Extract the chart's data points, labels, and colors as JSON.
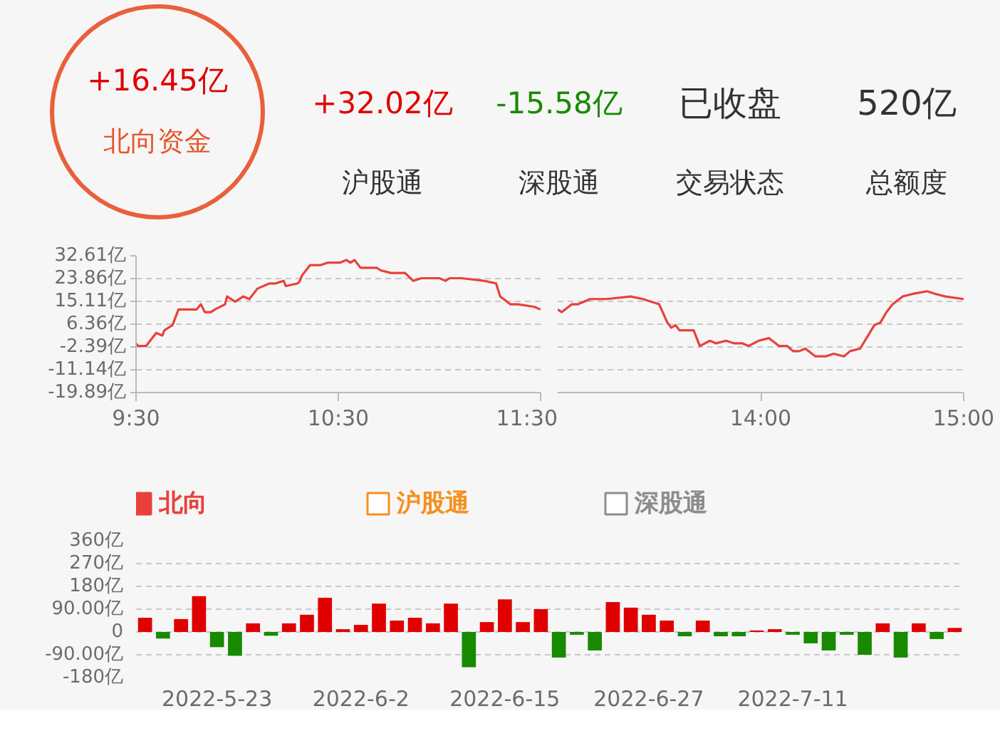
{
  "chart_data": [
    {
      "type": "other",
      "annotations": [
        "+16.45亿",
        "北向资金",
        "+32.02亿",
        "-15.58亿",
        "已收盘",
        "520亿",
        "沪股通",
        "深股通",
        "交易状态",
        "总额度"
      ]
    },
    {
      "type": "line",
      "xlim": [
        9.5,
        11.5
      ],
      "xticks": [
        {
          "value": 9.5,
          "label": "9:30"
        },
        {
          "value": 10.5,
          "label": "10:30"
        },
        {
          "value": 11.5,
          "label": "11:30"
        }
      ],
      "ylim": [
        -19.89,
        32.61
      ],
      "yticks": [
        {
          "value": 32.61,
          "label": "32.61亿"
        },
        {
          "value": 23.86,
          "label": "23.86亿"
        },
        {
          "value": 15.11,
          "label": "15.11亿"
        },
        {
          "value": 6.36,
          "label": "6.36亿"
        },
        {
          "value": -2.39,
          "label": "-2.39亿"
        },
        {
          "value": -11.14,
          "label": "-11.14亿"
        },
        {
          "value": -19.89,
          "label": "-19.89亿"
        }
      ],
      "grid": "y",
      "legend": "bottom",
      "series": [
        {
          "name": "北向",
          "color": "#e8413b",
          "x": [
            9.5,
            9.51,
            9.55,
            9.58,
            9.6,
            9.63,
            9.64,
            9.66,
            9.68,
            9.71,
            9.74,
            9.8,
            9.82,
            9.84,
            9.87,
            9.89,
            9.94,
            9.95,
            9.99,
            10.03,
            10.06,
            10.1,
            10.16,
            10.19,
            10.23,
            10.24,
            10.3,
            10.31,
            10.32,
            10.36,
            10.41,
            10.45,
            10.51,
            10.54,
            10.56,
            10.58,
            10.61,
            10.69,
            10.71,
            10.76,
            10.83,
            10.87,
            10.91,
            11,
            11.03,
            11.05,
            11.11,
            11.22,
            11.28,
            11.3,
            11.35,
            11.39,
            11.47,
            11.5
          ],
          "values": [
            -1,
            -2,
            -2,
            1,
            3,
            2,
            4,
            5,
            6,
            12,
            12,
            12,
            14,
            11,
            11,
            12,
            14,
            17,
            15,
            17,
            16,
            20,
            22,
            22,
            23,
            21,
            22,
            23,
            25,
            29,
            29,
            30,
            30,
            31,
            30,
            31,
            28,
            28,
            27,
            26,
            26,
            23,
            24,
            24,
            23,
            24,
            24,
            23,
            22,
            17,
            14,
            14,
            13,
            12
          ]
        },
        {
          "name": "沪股通",
          "color": "#f5901e"
        },
        {
          "name": "深股通",
          "color": "#8c8c8c"
        }
      ]
    },
    {
      "type": "line",
      "xlim": [
        13,
        15
      ],
      "xticks": [
        {
          "value": 14,
          "label": "14:00"
        },
        {
          "value": 15,
          "label": "15:00"
        }
      ],
      "ylim": [
        -19.89,
        32.61
      ],
      "yticks": [
        {
          "value": 32.61,
          "label": null
        },
        {
          "value": 23.86,
          "label": null
        },
        {
          "value": 15.11,
          "label": null
        },
        {
          "value": 6.36,
          "label": null
        },
        {
          "value": -2.39,
          "label": null
        },
        {
          "value": -11.14,
          "label": null
        },
        {
          "value": -19.89,
          "label": null
        }
      ],
      "grid": "y",
      "tick_labels": "x",
      "series": [
        {
          "color": "#e8413b",
          "x": [
            13,
            13.02,
            13.07,
            13.1,
            13.16,
            13.24,
            13.36,
            13.42,
            13.5,
            13.54,
            13.56,
            13.58,
            13.6,
            13.67,
            13.7,
            13.75,
            13.78,
            13.83,
            13.87,
            13.91,
            13.94,
            13.99,
            14.04,
            14.09,
            14.13,
            14.16,
            14.19,
            14.22,
            14.27,
            14.32,
            14.36,
            14.41,
            14.44,
            14.49,
            14.56,
            14.59,
            14.62,
            14.65,
            14.7,
            14.75,
            14.82,
            14.86,
            14.91,
            15
          ],
          "values": [
            12,
            11,
            14,
            14,
            16,
            16,
            17,
            16,
            14,
            7,
            5,
            6,
            4,
            4,
            -2,
            0,
            -1,
            0,
            -1,
            -1,
            -2,
            0,
            1,
            -2,
            -2,
            -4,
            -4,
            -3,
            -6,
            -6,
            -5,
            -6,
            -4,
            -3,
            6,
            7,
            11,
            14,
            17,
            18,
            19,
            18,
            17,
            16
          ]
        }
      ]
    },
    {
      "type": "bar",
      "categories": [
        null,
        null,
        null,
        null,
        "2022-5-23",
        null,
        null,
        null,
        null,
        null,
        null,
        null,
        "2022-6-2",
        null,
        null,
        null,
        null,
        null,
        null,
        null,
        "2022-6-15",
        null,
        null,
        null,
        null,
        null,
        null,
        null,
        "2022-6-27",
        null,
        null,
        null,
        null,
        null,
        null,
        null,
        "2022-7-11",
        null,
        null,
        null,
        null,
        null,
        null,
        null,
        null,
        null
      ],
      "values": [
        56,
        -26,
        51,
        141,
        -60,
        -94,
        34,
        -15,
        34,
        68,
        135,
        11,
        28,
        112,
        45,
        56,
        34,
        112,
        -139,
        39,
        129,
        39,
        90,
        -101,
        -11,
        -73,
        118,
        96,
        68,
        45,
        -17,
        45,
        -17,
        -17,
        6,
        11,
        -11,
        -45,
        -73,
        -11,
        -90,
        34,
        -101,
        34,
        -28,
        16
      ],
      "colors": [
        "#e00000",
        "#178a00",
        "#e00000",
        "#e00000",
        "#178a00",
        "#178a00",
        "#e00000",
        "#178a00",
        "#e00000",
        "#e00000",
        "#e00000",
        "#e00000",
        "#e00000",
        "#e00000",
        "#e00000",
        "#e00000",
        "#e00000",
        "#e00000",
        "#178a00",
        "#e00000",
        "#e00000",
        "#e00000",
        "#e00000",
        "#178a00",
        "#178a00",
        "#178a00",
        "#e00000",
        "#e00000",
        "#e00000",
        "#e00000",
        "#178a00",
        "#e00000",
        "#178a00",
        "#178a00",
        "#e00000",
        "#e00000",
        "#178a00",
        "#178a00",
        "#178a00",
        "#178a00",
        "#178a00",
        "#e00000",
        "#178a00",
        "#e00000",
        "#178a00",
        "#e00000"
      ],
      "ylim": [
        -180,
        360
      ],
      "yticks": [
        {
          "value": 360,
          "label": "360亿"
        },
        {
          "value": 270,
          "label": "270亿"
        },
        {
          "value": 180,
          "label": "180亿"
        },
        {
          "value": 90,
          "label": "90.00亿"
        },
        0,
        {
          "value": -90,
          "label": "-90.00亿"
        },
        {
          "value": -180,
          "label": "-180亿"
        }
      ],
      "grid": "y"
    }
  ]
}
